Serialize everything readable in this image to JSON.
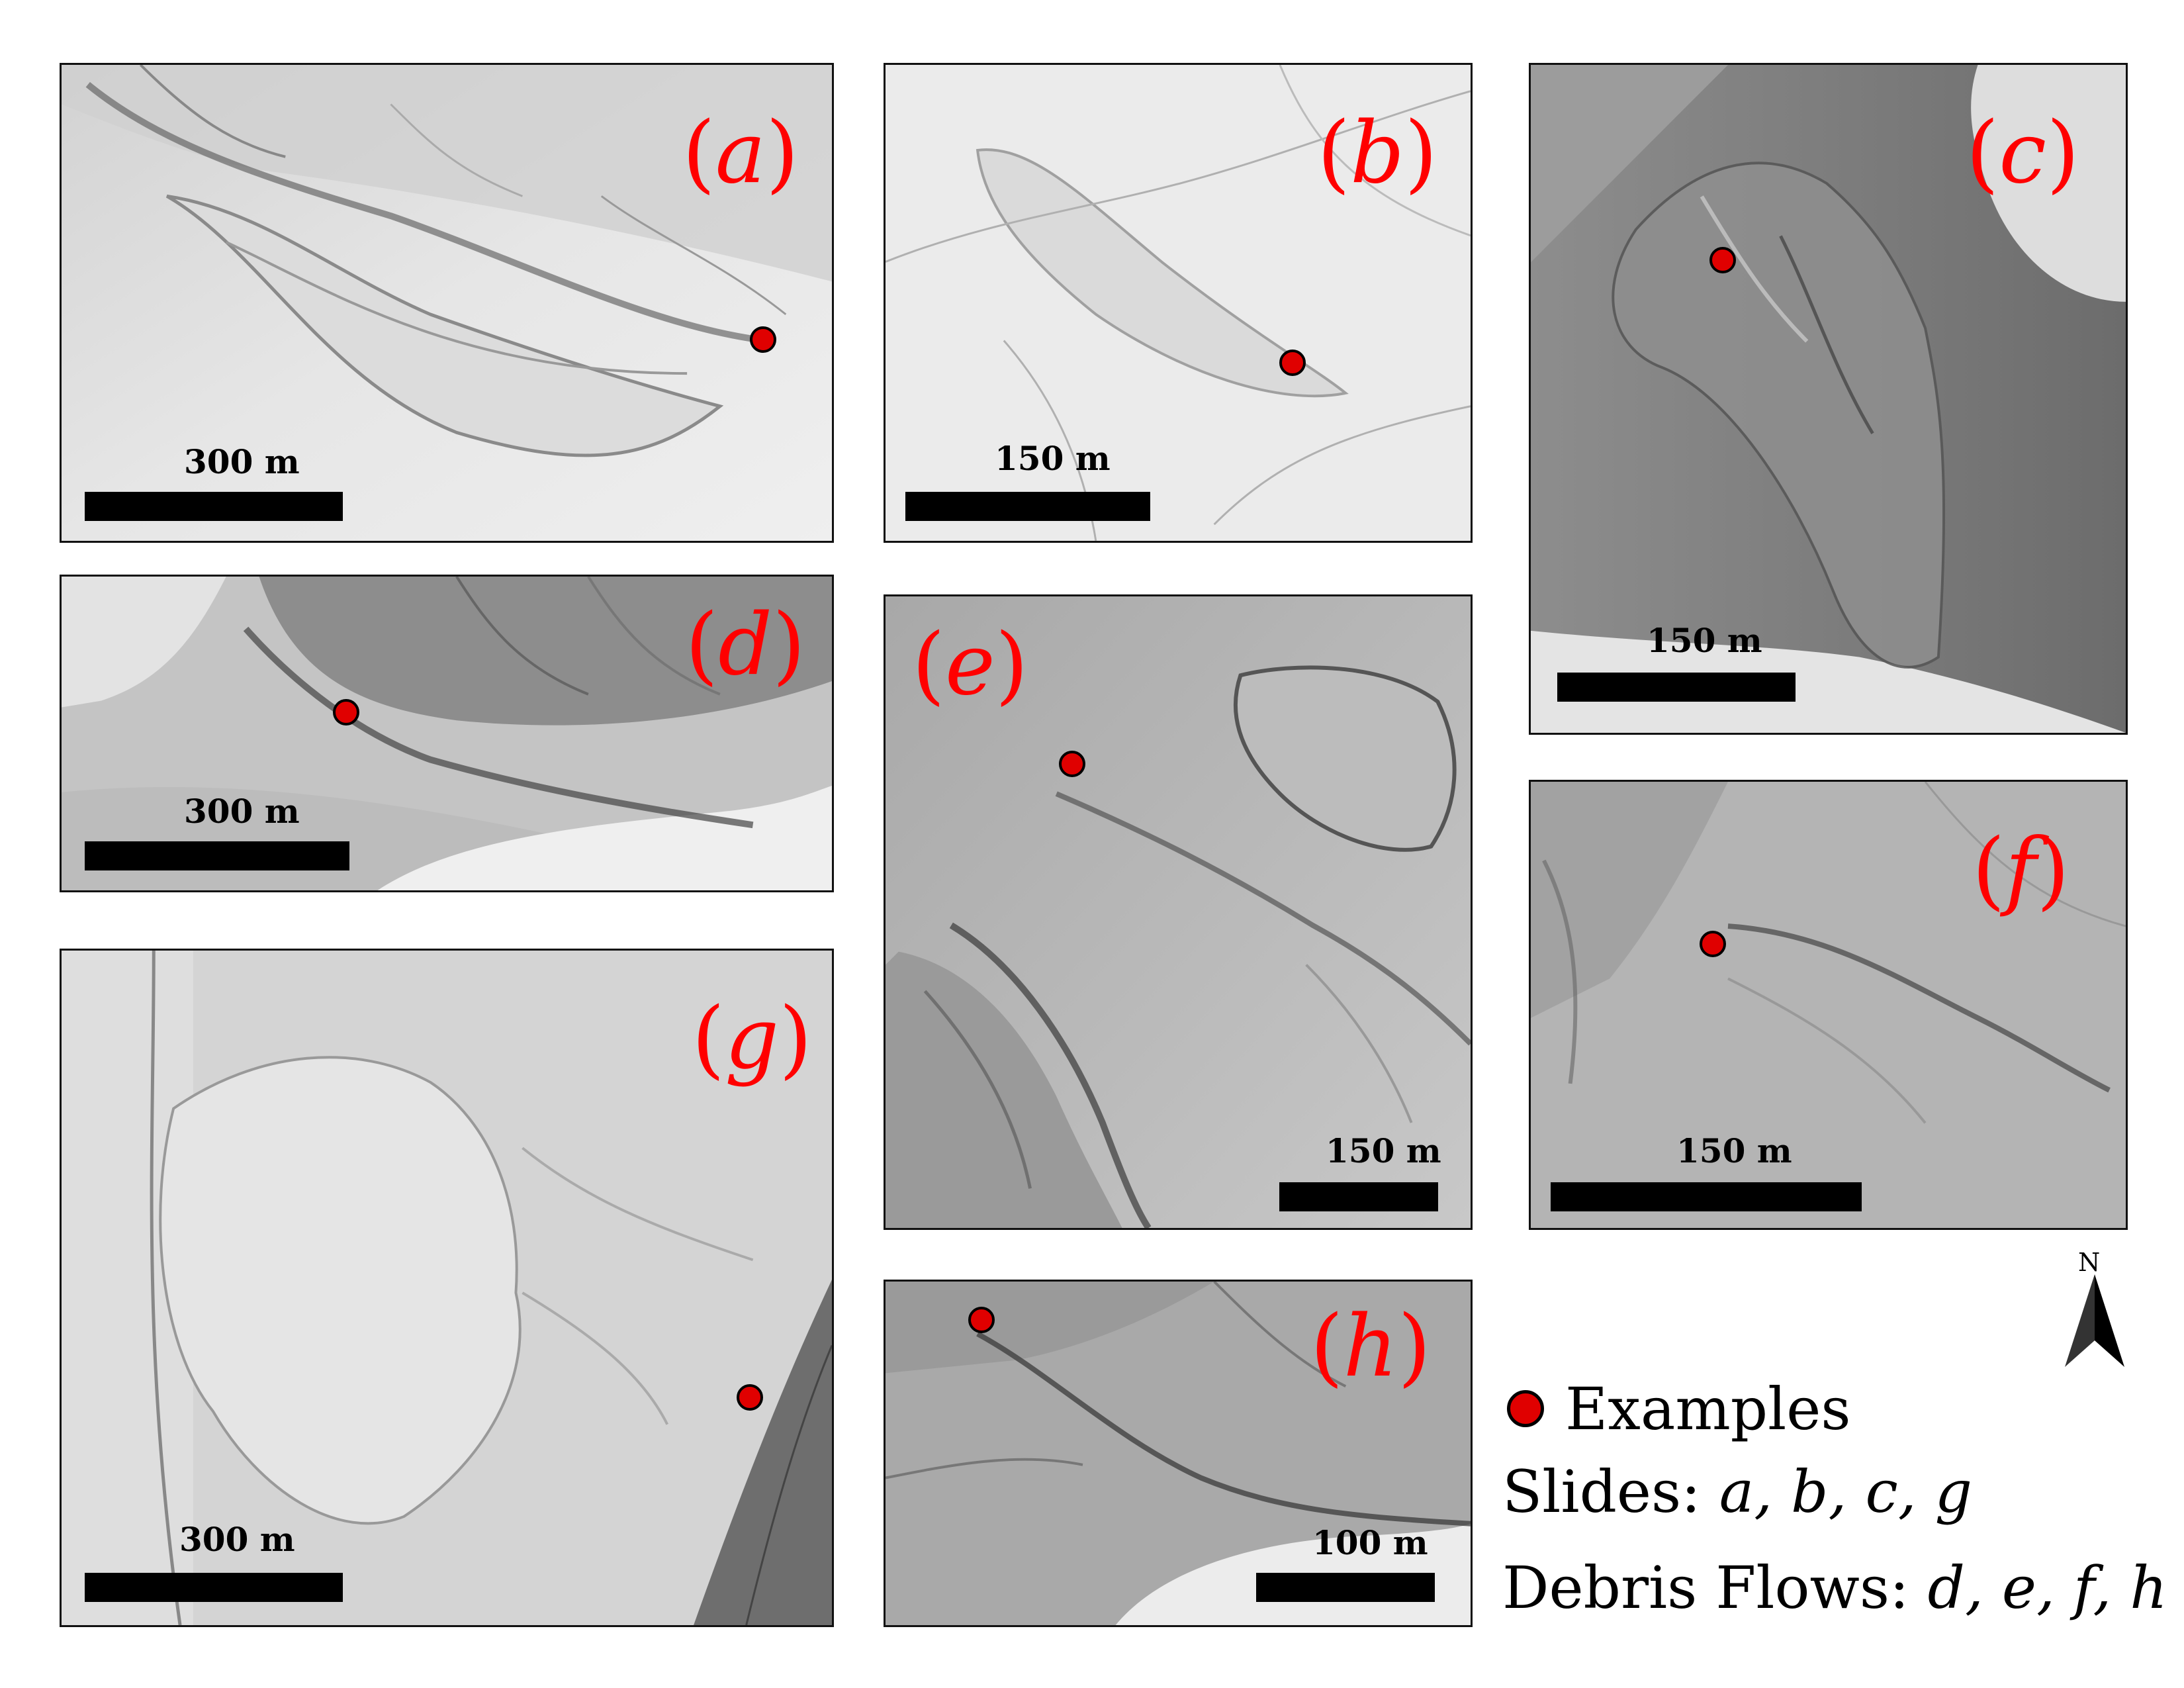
{
  "panels": [
    {
      "id": "a",
      "label": "a",
      "scale": "300 m"
    },
    {
      "id": "b",
      "label": "b",
      "scale": "150 m"
    },
    {
      "id": "c",
      "label": "c",
      "scale": "150 m"
    },
    {
      "id": "d",
      "label": "d",
      "scale": "300 m"
    },
    {
      "id": "e",
      "label": "e",
      "scale": "150 m"
    },
    {
      "id": "f",
      "label": "f",
      "scale": "150 m"
    },
    {
      "id": "g",
      "label": "g",
      "scale": "300 m"
    },
    {
      "id": "h",
      "label": "h",
      "scale": "100 m"
    }
  ],
  "legend": {
    "examples": "Examples",
    "slides_prefix": "Slides: ",
    "slides_list": "a, b, c, g",
    "debris_prefix": "Debris Flows: ",
    "debris_list": "d, e, f, h",
    "north": "N"
  },
  "colors": {
    "label": "#ff0000",
    "marker_fill": "#e00000",
    "marker_edge": "#000000"
  }
}
